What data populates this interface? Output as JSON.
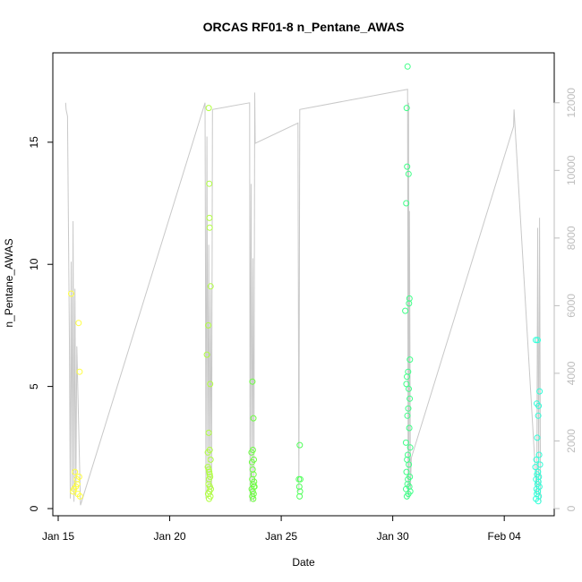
{
  "chart_data": {
    "type": "scatter",
    "title": "ORCAS RF01-8 n_Pentane_AWAS",
    "xlabel": "Date",
    "ylabel": "n_Pentane_AWAS",
    "x_is_date": true,
    "xlim": [
      "2016-01-15",
      "2016-02-06"
    ],
    "x_ticks": [
      {
        "date": "2016-01-15",
        "label": "Jan 15"
      },
      {
        "date": "2016-01-20",
        "label": "Jan 20"
      },
      {
        "date": "2016-01-25",
        "label": "Jan 25"
      },
      {
        "date": "2016-01-30",
        "label": "Jan 30"
      },
      {
        "date": "2016-02-04",
        "label": "Feb 04"
      }
    ],
    "ylim": [
      0,
      18
    ],
    "y_ticks": [
      0,
      5,
      10,
      15
    ],
    "y2_label": "",
    "y2lim": [
      0,
      13000
    ],
    "y2_ticks": [
      0,
      2000,
      4000,
      6000,
      8000,
      10000,
      12000
    ],
    "grid": false,
    "legend": "none",
    "colors": {
      "altitude_line": "#c8c8c8",
      "right_axis_text": "#bdbdbd"
    },
    "series": [
      {
        "color": "#ffff40",
        "points": [
          [
            "2016-01-15T14:00",
            8.8
          ],
          [
            "2016-01-15T17:00",
            0.8
          ],
          [
            "2016-01-15T18:00",
            1.5
          ],
          [
            "2016-01-15T20:00",
            1.2
          ],
          [
            "2016-01-15T21:00",
            0.6
          ],
          [
            "2016-01-15T22:00",
            7.6
          ],
          [
            "2016-01-15T23:00",
            5.6
          ],
          [
            "2016-01-15T22:30",
            1.3
          ],
          [
            "2016-01-15T20:30",
            1.0
          ],
          [
            "2016-01-15T19:00",
            0.9
          ],
          [
            "2016-01-15T23:30",
            0.5
          ],
          [
            "2016-01-15T16:00",
            0.7
          ]
        ]
      },
      {
        "color": "#b0ff40",
        "points": [
          [
            "2016-01-21T16:00",
            6.3
          ],
          [
            "2016-01-21T17:00",
            2.3
          ],
          [
            "2016-01-21T18:00",
            16.4
          ],
          [
            "2016-01-21T18:30",
            13.3
          ],
          [
            "2016-01-21T18:45",
            11.9
          ],
          [
            "2016-01-21T19:00",
            11.5
          ],
          [
            "2016-01-21T20:00",
            9.1
          ],
          [
            "2016-01-21T17:30",
            7.5
          ],
          [
            "2016-01-21T19:30",
            5.1
          ],
          [
            "2016-01-21T18:00",
            3.1
          ],
          [
            "2016-01-21T19:00",
            2.4
          ],
          [
            "2016-01-21T20:00",
            2.0
          ],
          [
            "2016-01-21T17:00",
            1.7
          ],
          [
            "2016-01-21T18:00",
            1.6
          ],
          [
            "2016-01-21T18:30",
            1.5
          ],
          [
            "2016-01-21T19:00",
            1.4
          ],
          [
            "2016-01-21T19:30",
            1.3
          ],
          [
            "2016-01-21T18:15",
            1.2
          ],
          [
            "2016-01-21T17:45",
            1.0
          ],
          [
            "2016-01-21T19:15",
            0.9
          ],
          [
            "2016-01-21T20:15",
            0.8
          ],
          [
            "2016-01-21T18:45",
            0.7
          ],
          [
            "2016-01-21T17:15",
            0.6
          ],
          [
            "2016-01-21T19:45",
            0.5
          ],
          [
            "2016-01-21T18:20",
            0.4
          ]
        ]
      },
      {
        "color": "#6cff40",
        "points": [
          [
            "2016-01-23T17:00",
            5.2
          ],
          [
            "2016-01-23T18:00",
            3.7
          ],
          [
            "2016-01-23T16:00",
            2.3
          ],
          [
            "2016-01-23T17:30",
            2.4
          ],
          [
            "2016-01-23T18:30",
            2.0
          ],
          [
            "2016-01-23T16:30",
            1.9
          ],
          [
            "2016-01-23T17:15",
            1.6
          ],
          [
            "2016-01-23T18:15",
            1.4
          ],
          [
            "2016-01-23T16:45",
            1.2
          ],
          [
            "2016-01-23T17:45",
            1.0
          ],
          [
            "2016-01-23T18:45",
            0.9
          ],
          [
            "2016-01-23T16:15",
            0.8
          ],
          [
            "2016-01-23T17:20",
            0.7
          ],
          [
            "2016-01-23T18:20",
            0.6
          ],
          [
            "2016-01-23T16:50",
            0.5
          ],
          [
            "2016-01-23T17:50",
            0.4
          ],
          [
            "2016-01-23T18:50",
            1.1
          ],
          [
            "2016-01-23T19:10",
            0.9
          ]
        ]
      },
      {
        "color": "#50ff5a",
        "points": [
          [
            "2016-01-25T20:00",
            2.6
          ],
          [
            "2016-01-25T19:00",
            1.2
          ],
          [
            "2016-01-25T20:30",
            1.2
          ],
          [
            "2016-01-25T19:30",
            0.9
          ],
          [
            "2016-01-25T20:15",
            0.7
          ],
          [
            "2016-01-25T19:45",
            0.5
          ]
        ]
      },
      {
        "color": "#40ff88",
        "points": [
          [
            "2016-01-30T16:00",
            18.1
          ],
          [
            "2016-01-30T15:00",
            16.4
          ],
          [
            "2016-01-30T15:30",
            14.0
          ],
          [
            "2016-01-30T17:00",
            13.7
          ],
          [
            "2016-01-30T14:30",
            12.5
          ],
          [
            "2016-01-30T18:00",
            8.6
          ],
          [
            "2016-01-30T17:30",
            8.4
          ],
          [
            "2016-01-30T13:30",
            8.1
          ],
          [
            "2016-01-30T18:30",
            6.1
          ],
          [
            "2016-01-30T16:30",
            5.6
          ],
          [
            "2016-01-30T15:15",
            5.4
          ],
          [
            "2016-01-30T14:45",
            5.1
          ],
          [
            "2016-01-30T17:15",
            4.9
          ],
          [
            "2016-01-30T18:15",
            4.5
          ],
          [
            "2016-01-30T16:45",
            4.1
          ],
          [
            "2016-01-30T15:45",
            3.8
          ],
          [
            "2016-01-30T17:45",
            3.3
          ],
          [
            "2016-01-30T14:15",
            2.7
          ],
          [
            "2016-01-30T18:45",
            2.5
          ],
          [
            "2016-01-30T16:15",
            2.2
          ],
          [
            "2016-01-30T15:20",
            2.0
          ],
          [
            "2016-01-30T17:20",
            1.8
          ],
          [
            "2016-01-30T14:50",
            1.5
          ],
          [
            "2016-01-30T18:20",
            1.3
          ],
          [
            "2016-01-30T16:20",
            1.2
          ],
          [
            "2016-01-30T15:50",
            1.0
          ],
          [
            "2016-01-30T17:50",
            0.9
          ],
          [
            "2016-01-30T14:20",
            0.8
          ],
          [
            "2016-01-30T18:50",
            0.7
          ],
          [
            "2016-01-30T16:50",
            0.6
          ],
          [
            "2016-01-30T15:10",
            0.5
          ]
        ]
      },
      {
        "color": "#30ffd8",
        "points": [
          [
            "2016-02-05T10:00",
            6.9
          ],
          [
            "2016-02-05T12:00",
            6.9
          ],
          [
            "2016-02-05T14:00",
            4.8
          ],
          [
            "2016-02-05T11:00",
            4.3
          ],
          [
            "2016-02-05T13:00",
            4.2
          ],
          [
            "2016-02-05T12:30",
            3.8
          ],
          [
            "2016-02-05T11:30",
            2.9
          ],
          [
            "2016-02-05T13:30",
            2.2
          ],
          [
            "2016-02-05T10:30",
            2.0
          ],
          [
            "2016-02-05T14:30",
            1.8
          ],
          [
            "2016-02-05T09:30",
            1.7
          ],
          [
            "2016-02-05T12:15",
            1.5
          ],
          [
            "2016-02-05T11:15",
            1.4
          ],
          [
            "2016-02-05T13:15",
            1.3
          ],
          [
            "2016-02-05T10:15",
            1.2
          ],
          [
            "2016-02-05T12:45",
            1.1
          ],
          [
            "2016-02-05T11:45",
            1.0
          ],
          [
            "2016-02-05T13:45",
            0.9
          ],
          [
            "2016-02-05T10:45",
            0.8
          ],
          [
            "2016-02-05T12:05",
            0.7
          ],
          [
            "2016-02-05T11:05",
            0.6
          ],
          [
            "2016-02-05T13:05",
            0.5
          ],
          [
            "2016-02-05T10:05",
            0.4
          ],
          [
            "2016-02-05T12:35",
            0.3
          ]
        ]
      }
    ],
    "altitude_trace": [
      [
        "2016-01-15T08:00",
        12000
      ],
      [
        "2016-01-15T08:30",
        11800
      ],
      [
        "2016-01-15T10:00",
        11600
      ],
      [
        "2016-01-15T12:00",
        5000
      ],
      [
        "2016-01-15T13:00",
        300
      ],
      [
        "2016-01-15T14:00",
        7300
      ],
      [
        "2016-01-15T15:00",
        500
      ],
      [
        "2016-01-15T16:00",
        8500
      ],
      [
        "2016-01-15T17:00",
        200
      ],
      [
        "2016-01-15T18:00",
        6500
      ],
      [
        "2016-01-15T19:00",
        400
      ],
      [
        "2016-01-15T20:00",
        4800
      ],
      [
        "2016-01-16T00:00",
        100
      ],
      [
        "2016-01-21T14:00",
        12000
      ],
      [
        "2016-01-21T14:30",
        7000
      ],
      [
        "2016-01-21T15:00",
        300
      ],
      [
        "2016-01-21T16:00",
        11000
      ],
      [
        "2016-01-21T17:00",
        500
      ],
      [
        "2016-01-21T18:00",
        7800
      ],
      [
        "2016-01-21T19:00",
        600
      ],
      [
        "2016-01-21T20:00",
        6500
      ],
      [
        "2016-01-21T21:00",
        400
      ],
      [
        "2016-01-21T22:00",
        11800
      ],
      [
        "2016-01-23T14:00",
        12000
      ],
      [
        "2016-01-23T14:30",
        200
      ],
      [
        "2016-01-23T15:30",
        9600
      ],
      [
        "2016-01-23T16:30",
        300
      ],
      [
        "2016-01-23T17:30",
        7400
      ],
      [
        "2016-01-23T18:30",
        200
      ],
      [
        "2016-01-23T19:30",
        12300
      ],
      [
        "2016-01-23T20:00",
        10800
      ],
      [
        "2016-01-25T18:00",
        11400
      ],
      [
        "2016-01-25T19:00",
        500
      ],
      [
        "2016-01-25T20:00",
        11800
      ],
      [
        "2016-01-30T16:00",
        12400
      ],
      [
        "2016-01-30T16:30",
        300
      ],
      [
        "2016-01-30T17:00",
        12000
      ],
      [
        "2016-01-30T17:30",
        400
      ],
      [
        "2016-01-30T18:00",
        8800
      ],
      [
        "2016-01-30T19:00",
        600
      ],
      [
        "2016-01-30T20:00",
        1500
      ],
      [
        "2016-02-04T10:00",
        11300
      ],
      [
        "2016-02-04T10:30",
        11800
      ],
      [
        "2016-02-05T11:00",
        400
      ],
      [
        "2016-02-05T12:00",
        8300
      ],
      [
        "2016-02-05T13:00",
        300
      ],
      [
        "2016-02-05T14:00",
        8600
      ],
      [
        "2016-02-05T15:00",
        200
      ]
    ]
  }
}
